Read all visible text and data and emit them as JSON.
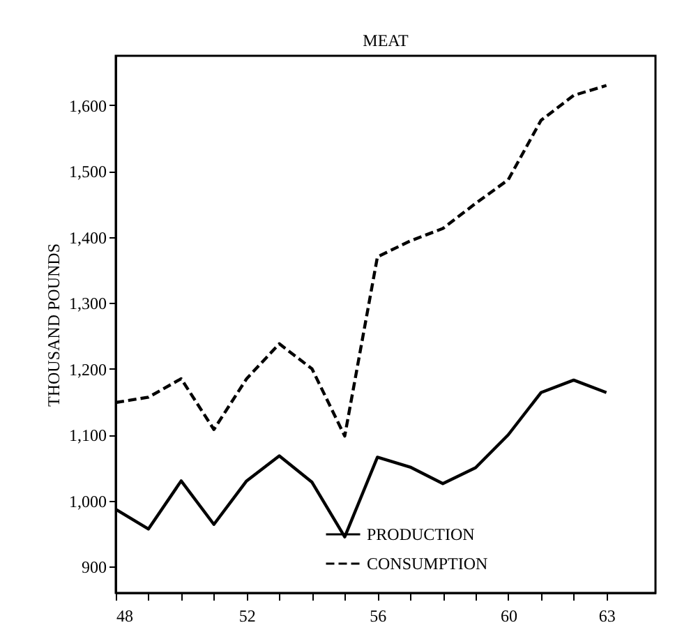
{
  "chart_data": {
    "type": "line",
    "title": "MEAT",
    "ylabel": "THOUSAND POUNDS",
    "x": [
      48,
      49,
      50,
      51,
      52,
      53,
      54,
      55,
      56,
      57,
      58,
      59,
      60,
      61,
      62,
      63
    ],
    "series": [
      {
        "name": "PRODUCTION",
        "color": "#000000",
        "line_style": "solid",
        "values": [
          987,
          957,
          1030,
          964,
          1030,
          1068,
          1028,
          945,
          1066,
          1051,
          1026,
          1050,
          1100,
          1164,
          1183,
          1164
        ]
      },
      {
        "name": "CONSUMPTION",
        "color": "#000000",
        "line_style": "dashed",
        "values": [
          1149,
          1157,
          1185,
          1108,
          1185,
          1238,
          1200,
          1098,
          1370,
          1394,
          1413,
          1451,
          1487,
          1577,
          1615,
          1630
        ]
      }
    ],
    "xlim": [
      48,
      64.5
    ],
    "ylim": [
      860,
      1675
    ],
    "xticks": [
      48,
      {
        "value": 49,
        "label": null
      },
      {
        "value": 50,
        "label": null
      },
      {
        "value": 51,
        "label": null
      },
      52,
      {
        "value": 53,
        "label": null
      },
      {
        "value": 54,
        "label": null
      },
      {
        "value": 55,
        "label": null
      },
      56,
      {
        "value": 57,
        "label": null
      },
      {
        "value": 58,
        "label": null
      },
      {
        "value": 59,
        "label": null
      },
      60,
      {
        "value": 61,
        "label": null
      },
      {
        "value": 62,
        "label": null
      },
      63
    ],
    "yticks": [
      900,
      {
        "value": 1000,
        "label": "1,000"
      },
      {
        "value": 1100,
        "label": "1,100"
      },
      {
        "value": 1200,
        "label": "1,200"
      },
      {
        "value": 1300,
        "label": "1,300"
      },
      {
        "value": 1400,
        "label": "1,400"
      },
      {
        "value": 1500,
        "label": "1,500"
      },
      {
        "value": 1600,
        "label": "1,600"
      }
    ],
    "grid": false,
    "legend": "bottom",
    "marker": "none"
  }
}
